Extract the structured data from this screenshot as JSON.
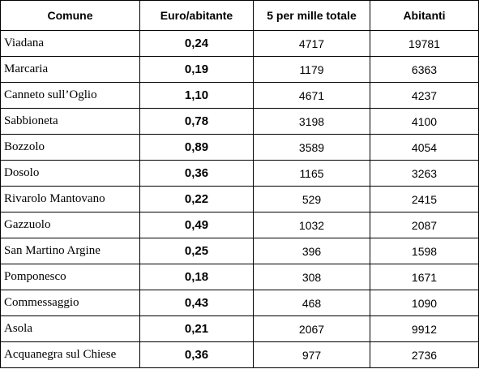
{
  "table": {
    "headers": [
      "Comune",
      "Euro/abitante",
      "5 per mille totale",
      "Abitanti"
    ],
    "rows": [
      {
        "comune": "Viadana",
        "euro": "0,24",
        "totale": "4717",
        "abitanti": "19781"
      },
      {
        "comune": "Marcaria",
        "euro": "0,19",
        "totale": "1179",
        "abitanti": "6363"
      },
      {
        "comune": "Canneto sull’Oglio",
        "euro": "1,10",
        "totale": "4671",
        "abitanti": "4237"
      },
      {
        "comune": "Sabbioneta",
        "euro": "0,78",
        "totale": "3198",
        "abitanti": "4100"
      },
      {
        "comune": "Bozzolo",
        "euro": "0,89",
        "totale": "3589",
        "abitanti": "4054"
      },
      {
        "comune": "Dosolo",
        "euro": "0,36",
        "totale": "1165",
        "abitanti": "3263"
      },
      {
        "comune": "Rivarolo Mantovano",
        "euro": "0,22",
        "totale": "529",
        "abitanti": "2415"
      },
      {
        "comune": "Gazzuolo",
        "euro": "0,49",
        "totale": "1032",
        "abitanti": "2087"
      },
      {
        "comune": "San Martino Argine",
        "euro": "0,25",
        "totale": "396",
        "abitanti": "1598"
      },
      {
        "comune": "Pomponesco",
        "euro": "0,18",
        "totale": "308",
        "abitanti": "1671"
      },
      {
        "comune": "Commessaggio",
        "euro": "0,43",
        "totale": "468",
        "abitanti": "1090"
      },
      {
        "comune": "Asola",
        "euro": "0,21",
        "totale": "2067",
        "abitanti": "9912"
      },
      {
        "comune": "Acquanegra sul Chiese",
        "euro": "0,36",
        "totale": "977",
        "abitanti": "2736"
      }
    ]
  }
}
